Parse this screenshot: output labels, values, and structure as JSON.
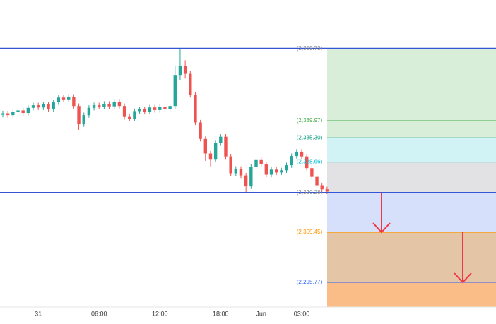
{
  "chart_data": {
    "type": "candlestick",
    "categories": [
      null,
      null,
      null,
      null,
      null,
      null,
      null,
      "31",
      null,
      null,
      null,
      null,
      null,
      null,
      null,
      null,
      null,
      null,
      null,
      "06:00",
      null,
      null,
      null,
      null,
      null,
      null,
      null,
      null,
      null,
      null,
      null,
      "12:00",
      null,
      null,
      null,
      null,
      null,
      null,
      null,
      null,
      null,
      null,
      null,
      "18:00",
      null,
      null,
      null,
      null,
      null,
      null,
      null,
      "Jun",
      null,
      null,
      null,
      null,
      null,
      null,
      null,
      "03:00",
      null,
      null,
      null,
      null,
      null
    ],
    "open": [
      2341.6,
      2342.0,
      2341.5,
      2342.3,
      2342.8,
      2342.1,
      2343.5,
      2344.2,
      2343.6,
      2344.5,
      2343.2,
      2345.0,
      2346.3,
      2345.8,
      2346.5,
      2344.0,
      2339.0,
      2341.5,
      2343.5,
      2344.2,
      2343.8,
      2344.6,
      2343.9,
      2345.2,
      2344.0,
      2341.0,
      2340.5,
      2342.6,
      2343.1,
      2342.4,
      2343.6,
      2342.9,
      2343.8,
      2343.2,
      2344.0,
      2352.5,
      2355.0,
      2352.8,
      2347.0,
      2339.5,
      2335.0,
      2331.0,
      2329.5,
      2333.8,
      2335.6,
      2330.2,
      2325.6,
      2326.8,
      2325.0,
      2322.0,
      2327.3,
      2329.4,
      2328.0,
      2325.2,
      2326.6,
      2325.8,
      2326.4,
      2327.8,
      2330.3,
      2331.5,
      2330.2,
      2327.0,
      2324.6,
      2322.3,
      2321.2
    ],
    "high": [
      2342.7,
      2342.7,
      2343.0,
      2343.5,
      2343.5,
      2344.2,
      2344.9,
      2344.9,
      2345.2,
      2345.2,
      2345.7,
      2347.0,
      2347.0,
      2347.2,
      2347.2,
      2344.7,
      2342.2,
      2344.2,
      2344.9,
      2344.9,
      2345.3,
      2345.3,
      2345.9,
      2345.9,
      2344.7,
      2341.7,
      2343.3,
      2343.8,
      2343.8,
      2344.3,
      2344.3,
      2344.5,
      2344.5,
      2344.7,
      2355.0,
      2359.7,
      2356.5,
      2353.5,
      2347.7,
      2340.2,
      2335.7,
      2331.7,
      2334.5,
      2336.3,
      2336.3,
      2330.9,
      2327.5,
      2327.5,
      2325.7,
      2328.0,
      2330.1,
      2330.1,
      2328.7,
      2327.3,
      2327.3,
      2327.1,
      2328.5,
      2331.0,
      2332.2,
      2332.2,
      2330.9,
      2327.7,
      2325.3,
      2323.0,
      2321.9
    ],
    "low": [
      2340.9,
      2340.8,
      2340.8,
      2341.6,
      2341.4,
      2341.4,
      2342.8,
      2342.9,
      2342.9,
      2342.5,
      2342.5,
      2344.3,
      2345.1,
      2345.1,
      2343.3,
      2337.5,
      2338.3,
      2340.8,
      2342.8,
      2343.1,
      2343.1,
      2343.2,
      2343.2,
      2343.3,
      2340.3,
      2339.8,
      2339.8,
      2341.9,
      2341.7,
      2341.7,
      2342.2,
      2342.2,
      2342.5,
      2342.5,
      2343.3,
      2351.0,
      2351.5,
      2346.3,
      2338.8,
      2334.3,
      2329.0,
      2327.5,
      2328.8,
      2333.1,
      2329.5,
      2324.9,
      2324.9,
      2324.3,
      2320.3,
      2321.3,
      2326.6,
      2327.3,
      2324.5,
      2324.5,
      2325.1,
      2325.1,
      2325.7,
      2327.1,
      2329.6,
      2329.5,
      2326.3,
      2323.9,
      2321.6,
      2320.5,
      2319.9
    ],
    "close": [
      2342.0,
      2341.5,
      2342.3,
      2342.8,
      2342.1,
      2343.5,
      2344.2,
      2343.6,
      2344.5,
      2343.2,
      2345.0,
      2346.3,
      2345.8,
      2346.5,
      2344.0,
      2339.0,
      2341.5,
      2343.5,
      2344.2,
      2343.8,
      2344.6,
      2343.9,
      2345.2,
      2344.0,
      2341.0,
      2340.5,
      2342.6,
      2343.1,
      2342.4,
      2343.6,
      2342.9,
      2343.8,
      2343.2,
      2344.0,
      2352.5,
      2355.0,
      2352.8,
      2347.0,
      2339.5,
      2335.0,
      2331.0,
      2329.5,
      2333.8,
      2335.6,
      2330.2,
      2325.6,
      2326.8,
      2325.0,
      2322.0,
      2327.3,
      2329.4,
      2328.0,
      2325.2,
      2326.6,
      2325.8,
      2326.4,
      2327.8,
      2330.3,
      2331.5,
      2330.2,
      2327.0,
      2324.6,
      2322.3,
      2321.2,
      2320.6
    ],
    "up_color": "#26a69a",
    "down_color": "#ef5350",
    "ylim": [
      2289.0,
      2373.0
    ],
    "range_lines": [
      2359.73,
      2320.28
    ],
    "range_color": "#3355d6",
    "levels": [
      {
        "value": 2359.73,
        "label": "(2,359.73)",
        "color": "#8a8a8a",
        "fill": "#d9eed9"
      },
      {
        "value": 2339.97,
        "label": "(2,339.97)",
        "color": "#4caf50",
        "fill": "#d9eed9"
      },
      {
        "value": 2335.3,
        "label": "(2,335.30)",
        "color": "#089981",
        "fill": "#d2f3f5"
      },
      {
        "value": 2328.66,
        "label": "(2,328.66)",
        "color": "#00bcd4",
        "fill": "#e2e2e4"
      },
      {
        "value": 2320.28,
        "label": "(2,320.28)",
        "color": "#8a8a8a",
        "fill": "#d6e0fb"
      },
      {
        "value": 2309.45,
        "label": "(2,309.45)",
        "color": "#ff9800",
        "fill": "#e4c5a5"
      },
      {
        "value": 2295.77,
        "label": "(2,295.77)",
        "color": "#2962ff",
        "fill": "#fbbd88"
      }
    ]
  }
}
